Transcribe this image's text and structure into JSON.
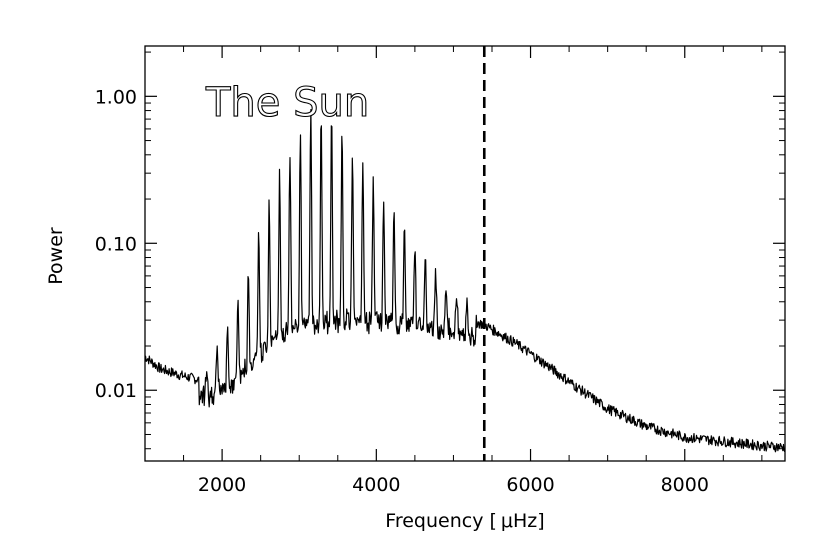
{
  "chart_data": {
    "type": "line",
    "annotation": "The Sun",
    "xlabel": "Frequency [",
    "xlabel_unit": "μHz",
    "xlabel_close": "]",
    "ylabel": "Power",
    "xlim": [
      1000,
      9300
    ],
    "ylim": [
      0.0033,
      2.2
    ],
    "yscale": "log",
    "x_ticks": [
      2000,
      4000,
      6000,
      8000
    ],
    "x_tick_labels": [
      "2000",
      "4000",
      "6000",
      "8000"
    ],
    "y_ticks": [
      0.01,
      0.1,
      1.0
    ],
    "y_tick_labels": [
      "0.01",
      "0.10",
      "1.00"
    ],
    "vline_x": 5400,
    "envelope_center": 3150,
    "peak_spacing": 135,
    "background": [
      [
        1000,
        0.017
      ],
      [
        1200,
        0.014
      ],
      [
        1500,
        0.0125
      ],
      [
        1800,
        0.0115
      ],
      [
        2000,
        0.0125
      ],
      [
        2200,
        0.015
      ],
      [
        2400,
        0.02
      ],
      [
        2600,
        0.026
      ],
      [
        2800,
        0.031
      ],
      [
        3000,
        0.034
      ],
      [
        3500,
        0.037
      ],
      [
        4000,
        0.037
      ],
      [
        4500,
        0.035
      ],
      [
        5000,
        0.032
      ],
      [
        5400,
        0.028
      ],
      [
        5800,
        0.021
      ],
      [
        6200,
        0.015
      ],
      [
        6600,
        0.0105
      ],
      [
        7000,
        0.0075
      ],
      [
        7500,
        0.0057
      ],
      [
        8000,
        0.0048
      ],
      [
        8500,
        0.0045
      ],
      [
        9000,
        0.0042
      ],
      [
        9300,
        0.0041
      ]
    ],
    "peak_envelope": [
      [
        1700,
        0.011
      ],
      [
        2000,
        0.02
      ],
      [
        2300,
        0.05
      ],
      [
        2500,
        0.14
      ],
      [
        2700,
        0.25
      ],
      [
        2900,
        0.45
      ],
      [
        3100,
        0.8
      ],
      [
        3300,
        0.82
      ],
      [
        3500,
        0.7
      ],
      [
        3700,
        0.42
      ],
      [
        3900,
        0.27
      ],
      [
        4100,
        0.21
      ],
      [
        4300,
        0.15
      ],
      [
        4500,
        0.1
      ],
      [
        4700,
        0.07
      ],
      [
        4900,
        0.05
      ],
      [
        5100,
        0.04
      ],
      [
        5300,
        0.034
      ]
    ]
  }
}
